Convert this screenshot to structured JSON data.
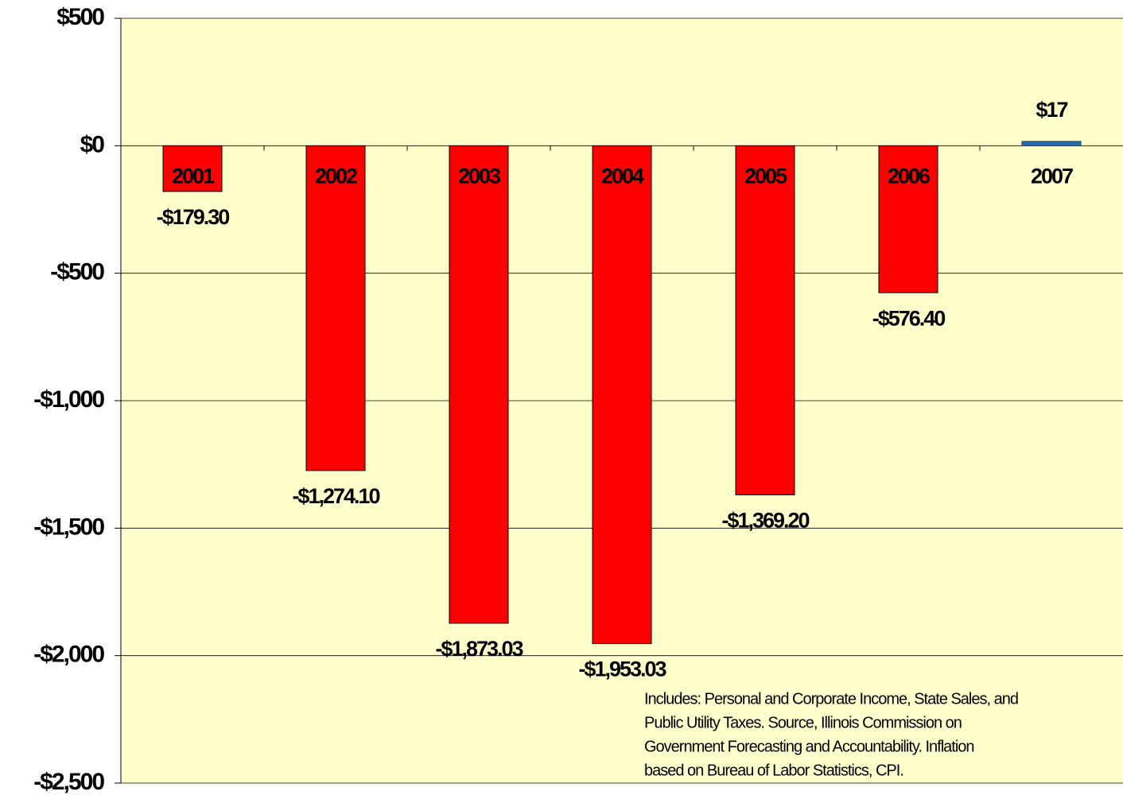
{
  "chart_data": {
    "type": "bar",
    "categories": [
      "2001",
      "2002",
      "2003",
      "2004",
      "2005",
      "2006",
      "2007"
    ],
    "values": [
      -179.3,
      -1274.1,
      -1873.03,
      -1953.03,
      -1369.2,
      -576.4,
      17
    ],
    "value_labels": [
      "-$179.30",
      "-$1,274.10",
      "-$1,873.03",
      "-$1,953.03",
      "-$1,369.20",
      "-$576.40",
      "$17"
    ],
    "colors": [
      "#ff0000",
      "#ff0000",
      "#ff0000",
      "#ff0000",
      "#ff0000",
      "#ff0000",
      "#2a6ab0"
    ],
    "ylim": [
      -2500,
      500
    ],
    "yticks": [
      {
        "value": 500,
        "label": "$500"
      },
      {
        "value": 0,
        "label": "$0"
      },
      {
        "value": -500,
        "label": "-$500"
      },
      {
        "value": -1000,
        "label": "-$1,000"
      },
      {
        "value": -1500,
        "label": "-$1,500"
      },
      {
        "value": -2000,
        "label": "-$2,000"
      },
      {
        "value": -2500,
        "label": "-$2,500"
      }
    ],
    "grid": true,
    "annotation": [
      "Includes:  Personal and Corporate Income, State Sales, and",
      "Public Utility Taxes.  Source, Illinois Commission on",
      "Government Forecasting and Accountability.  Inflation",
      "based on Bureau of Labor Statistics, CPI."
    ]
  }
}
